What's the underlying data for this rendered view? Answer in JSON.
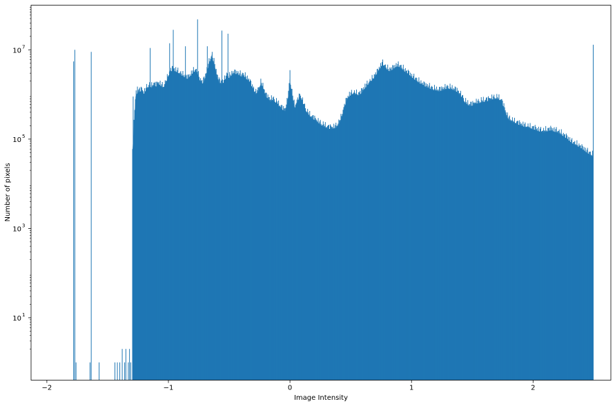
{
  "chart_data": {
    "type": "bar",
    "title": "",
    "xlabel": "Image Intensity",
    "ylabel": "Number of pixels",
    "y_scale": "log",
    "xlim": [
      -2.13,
      2.64
    ],
    "ylim": [
      0.4,
      100000000
    ],
    "bar_color": "#1f77b4",
    "grid": false,
    "x_ticks": [
      {
        "value": -2,
        "label": "−2"
      },
      {
        "value": -1,
        "label": "−1"
      },
      {
        "value": 0,
        "label": "0"
      },
      {
        "value": 1,
        "label": "1"
      },
      {
        "value": 2,
        "label": "2"
      }
    ],
    "y_ticks": [
      {
        "value": 10,
        "base": "10",
        "exp": "1"
      },
      {
        "value": 1000,
        "base": "10",
        "exp": "3"
      },
      {
        "value": 100000,
        "base": "10",
        "exp": "5"
      },
      {
        "value": 10000000,
        "base": "10",
        "exp": "7"
      }
    ],
    "spikes": [
      {
        "x": -1.78,
        "y": 5500000
      },
      {
        "x": -1.77,
        "y": 10000000
      },
      {
        "x": -1.76,
        "y": 1
      },
      {
        "x": -1.645,
        "y": 1
      },
      {
        "x": -1.635,
        "y": 9000000
      },
      {
        "x": -1.57,
        "y": 1
      },
      {
        "x": -1.44,
        "y": 1
      },
      {
        "x": -1.42,
        "y": 1
      },
      {
        "x": -1.4,
        "y": 1
      },
      {
        "x": -1.38,
        "y": 2
      },
      {
        "x": -1.36,
        "y": 1
      },
      {
        "x": -1.35,
        "y": 2
      },
      {
        "x": -1.33,
        "y": 1
      },
      {
        "x": -1.32,
        "y": 2
      },
      {
        "x": -1.31,
        "y": 1
      }
    ],
    "envelope": [
      [
        -1.295,
        60000
      ],
      [
        -1.28,
        300000
      ],
      [
        -1.27,
        900000
      ],
      [
        -1.25,
        1100000
      ],
      [
        -1.22,
        1200000
      ],
      [
        -1.2,
        1000000
      ],
      [
        -1.18,
        1300000
      ],
      [
        -1.16,
        1500000
      ],
      [
        -1.14,
        1400000
      ],
      [
        -1.12,
        1600000
      ],
      [
        -1.1,
        1500000
      ],
      [
        -1.08,
        1700000
      ],
      [
        -1.06,
        1500000
      ],
      [
        -1.04,
        1400000
      ],
      [
        -1.02,
        1800000
      ],
      [
        -1.0,
        2500000
      ],
      [
        -0.98,
        3200000
      ],
      [
        -0.96,
        3600000
      ],
      [
        -0.94,
        3200000
      ],
      [
        -0.92,
        3000000
      ],
      [
        -0.9,
        2700000
      ],
      [
        -0.88,
        2500000
      ],
      [
        -0.86,
        2300000
      ],
      [
        -0.84,
        2200000
      ],
      [
        -0.82,
        2500000
      ],
      [
        -0.8,
        3000000
      ],
      [
        -0.78,
        3300000
      ],
      [
        -0.76,
        2800000
      ],
      [
        -0.74,
        2000000
      ],
      [
        -0.72,
        1700000
      ],
      [
        -0.7,
        2200000
      ],
      [
        -0.68,
        3500000
      ],
      [
        -0.66,
        5500000
      ],
      [
        -0.64,
        6500000
      ],
      [
        -0.62,
        4500000
      ],
      [
        -0.6,
        2500000
      ],
      [
        -0.58,
        1800000
      ],
      [
        -0.56,
        1700000
      ],
      [
        -0.54,
        1900000
      ],
      [
        -0.52,
        2600000
      ],
      [
        -0.5,
        2300000
      ],
      [
        -0.48,
        2700000
      ],
      [
        -0.46,
        2900000
      ],
      [
        -0.44,
        2800000
      ],
      [
        -0.42,
        2700000
      ],
      [
        -0.4,
        2500000
      ],
      [
        -0.38,
        2600000
      ],
      [
        -0.36,
        2200000
      ],
      [
        -0.34,
        2000000
      ],
      [
        -0.32,
        1600000
      ],
      [
        -0.3,
        1200000
      ],
      [
        -0.28,
        1000000
      ],
      [
        -0.26,
        1200000
      ],
      [
        -0.24,
        1700000
      ],
      [
        -0.22,
        1400000
      ],
      [
        -0.2,
        900000
      ],
      [
        -0.18,
        800000
      ],
      [
        -0.16,
        700000
      ],
      [
        -0.14,
        750000
      ],
      [
        -0.12,
        650000
      ],
      [
        -0.1,
        600000
      ],
      [
        -0.08,
        500000
      ],
      [
        -0.06,
        450000
      ],
      [
        -0.04,
        420000
      ],
      [
        -0.02,
        700000
      ],
      [
        0.0,
        2000000
      ],
      [
        0.02,
        900000
      ],
      [
        0.04,
        500000
      ],
      [
        0.06,
        650000
      ],
      [
        0.08,
        900000
      ],
      [
        0.1,
        700000
      ],
      [
        0.12,
        500000
      ],
      [
        0.14,
        380000
      ],
      [
        0.16,
        330000
      ],
      [
        0.18,
        290000
      ],
      [
        0.2,
        270000
      ],
      [
        0.22,
        240000
      ],
      [
        0.24,
        220000
      ],
      [
        0.26,
        200000
      ],
      [
        0.28,
        190000
      ],
      [
        0.3,
        175000
      ],
      [
        0.32,
        170000
      ],
      [
        0.34,
        168000
      ],
      [
        0.36,
        170000
      ],
      [
        0.38,
        180000
      ],
      [
        0.4,
        210000
      ],
      [
        0.42,
        280000
      ],
      [
        0.44,
        420000
      ],
      [
        0.46,
        650000
      ],
      [
        0.48,
        850000
      ],
      [
        0.5,
        950000
      ],
      [
        0.52,
        1000000
      ],
      [
        0.54,
        980000
      ],
      [
        0.56,
        940000
      ],
      [
        0.58,
        1000000
      ],
      [
        0.6,
        1200000
      ],
      [
        0.62,
        1400000
      ],
      [
        0.64,
        1600000
      ],
      [
        0.66,
        1800000
      ],
      [
        0.68,
        2100000
      ],
      [
        0.7,
        2500000
      ],
      [
        0.72,
        3000000
      ],
      [
        0.74,
        3800000
      ],
      [
        0.76,
        4700000
      ],
      [
        0.78,
        4000000
      ],
      [
        0.8,
        3500000
      ],
      [
        0.82,
        3300000
      ],
      [
        0.84,
        3500000
      ],
      [
        0.86,
        3800000
      ],
      [
        0.88,
        4200000
      ],
      [
        0.9,
        4100000
      ],
      [
        0.92,
        3700000
      ],
      [
        0.94,
        3300000
      ],
      [
        0.96,
        3000000
      ],
      [
        0.98,
        2700000
      ],
      [
        1.0,
        2400000
      ],
      [
        1.02,
        2200000
      ],
      [
        1.04,
        2000000
      ],
      [
        1.06,
        1800000
      ],
      [
        1.08,
        1650000
      ],
      [
        1.1,
        1550000
      ],
      [
        1.12,
        1450000
      ],
      [
        1.14,
        1400000
      ],
      [
        1.16,
        1300000
      ],
      [
        1.18,
        1250000
      ],
      [
        1.2,
        1200000
      ],
      [
        1.22,
        1150000
      ],
      [
        1.24,
        1200000
      ],
      [
        1.26,
        1250000
      ],
      [
        1.28,
        1300000
      ],
      [
        1.3,
        1350000
      ],
      [
        1.32,
        1300000
      ],
      [
        1.34,
        1250000
      ],
      [
        1.36,
        1200000
      ],
      [
        1.38,
        1100000
      ],
      [
        1.4,
        950000
      ],
      [
        1.42,
        800000
      ],
      [
        1.44,
        650000
      ],
      [
        1.46,
        580000
      ],
      [
        1.48,
        550000
      ],
      [
        1.5,
        560000
      ],
      [
        1.52,
        590000
      ],
      [
        1.54,
        620000
      ],
      [
        1.56,
        640000
      ],
      [
        1.58,
        670000
      ],
      [
        1.6,
        680000
      ],
      [
        1.62,
        700000
      ],
      [
        1.64,
        730000
      ],
      [
        1.66,
        760000
      ],
      [
        1.68,
        780000
      ],
      [
        1.7,
        790000
      ],
      [
        1.72,
        760000
      ],
      [
        1.74,
        680000
      ],
      [
        1.76,
        500000
      ],
      [
        1.78,
        340000
      ],
      [
        1.8,
        270000
      ],
      [
        1.82,
        250000
      ],
      [
        1.84,
        230000
      ],
      [
        1.86,
        220000
      ],
      [
        1.88,
        210000
      ],
      [
        1.9,
        200000
      ],
      [
        1.92,
        190000
      ],
      [
        1.94,
        180000
      ],
      [
        1.96,
        175000
      ],
      [
        1.98,
        170000
      ],
      [
        2.0,
        165000
      ],
      [
        2.02,
        160000
      ],
      [
        2.04,
        150000
      ],
      [
        2.06,
        145000
      ],
      [
        2.08,
        140000
      ],
      [
        2.1,
        145000
      ],
      [
        2.12,
        150000
      ],
      [
        2.14,
        155000
      ],
      [
        2.16,
        150000
      ],
      [
        2.18,
        145000
      ],
      [
        2.2,
        140000
      ],
      [
        2.22,
        130000
      ],
      [
        2.24,
        120000
      ],
      [
        2.26,
        110000
      ],
      [
        2.28,
        100000
      ],
      [
        2.3,
        90000
      ],
      [
        2.32,
        80000
      ],
      [
        2.34,
        75000
      ],
      [
        2.36,
        70000
      ],
      [
        2.38,
        65000
      ],
      [
        2.4,
        60000
      ],
      [
        2.42,
        55000
      ],
      [
        2.44,
        50000
      ],
      [
        2.46,
        46000
      ],
      [
        2.48,
        42000
      ],
      [
        2.495,
        40000
      ]
    ],
    "tall_spikes": [
      {
        "x": -1.29,
        "y": 900000
      },
      {
        "x": -1.255,
        "y": 1500000
      },
      {
        "x": -1.15,
        "y": 11000000
      },
      {
        "x": -0.99,
        "y": 14000000
      },
      {
        "x": -0.96,
        "y": 28000000
      },
      {
        "x": -0.86,
        "y": 12000000
      },
      {
        "x": -0.76,
        "y": 48000000
      },
      {
        "x": -0.68,
        "y": 12000000
      },
      {
        "x": -0.64,
        "y": 9000000
      },
      {
        "x": -0.56,
        "y": 27000000
      },
      {
        "x": -0.51,
        "y": 23000000
      },
      {
        "x": -0.3,
        "y": 1500000
      },
      {
        "x": 0.0,
        "y": 3500000
      },
      {
        "x": 2.495,
        "y": 13000000
      }
    ]
  }
}
